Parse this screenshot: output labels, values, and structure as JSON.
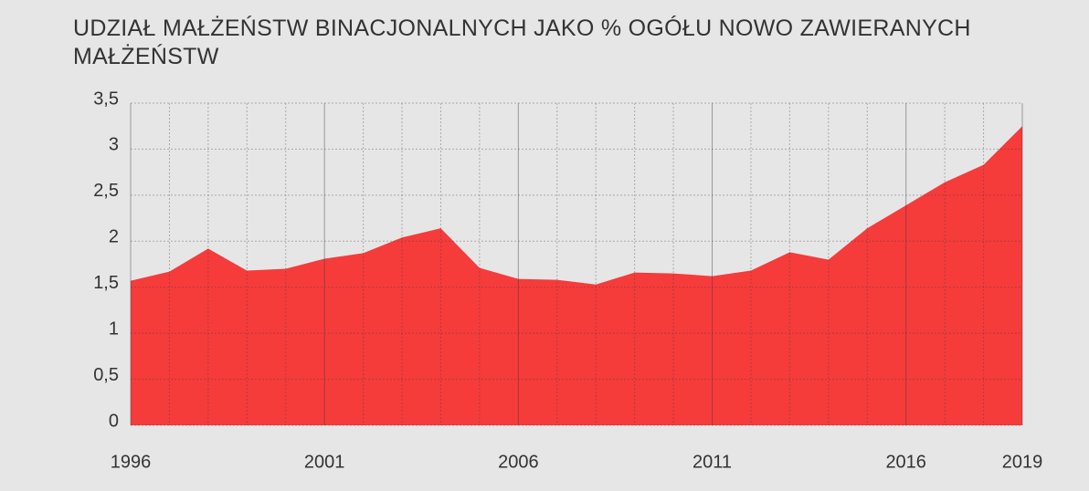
{
  "chart_data": {
    "type": "area",
    "title": "UDZIAŁ MAŁŻEŃSTW BINACJONALNYCH JAKO % OGÓŁU NOWO ZAWIERANYCH MAŁŻEŃSTW",
    "x": [
      1996,
      1997,
      1998,
      1999,
      2000,
      2001,
      2002,
      2003,
      2004,
      2005,
      2006,
      2007,
      2008,
      2009,
      2010,
      2011,
      2012,
      2013,
      2014,
      2015,
      2016,
      2017,
      2018,
      2019
    ],
    "values": [
      1.57,
      1.67,
      1.92,
      1.68,
      1.7,
      1.81,
      1.87,
      2.04,
      2.14,
      1.71,
      1.59,
      1.58,
      1.53,
      1.66,
      1.65,
      1.62,
      1.68,
      1.88,
      1.8,
      2.14,
      2.39,
      2.64,
      2.83,
      3.25
    ],
    "color": "#f63b3b",
    "xlim": [
      1996,
      2019
    ],
    "xticks": [
      1996,
      2001,
      2006,
      2011,
      2016,
      2019
    ],
    "ylim": [
      0,
      3.5
    ],
    "yticks": [
      0,
      {
        "value": 0.5,
        "label": "0,5"
      },
      1,
      {
        "value": 1.5,
        "label": "1,5"
      },
      2,
      {
        "value": 2.5,
        "label": "2,5"
      },
      3,
      {
        "value": 3.5,
        "label": "3,5"
      }
    ],
    "grid": true
  }
}
